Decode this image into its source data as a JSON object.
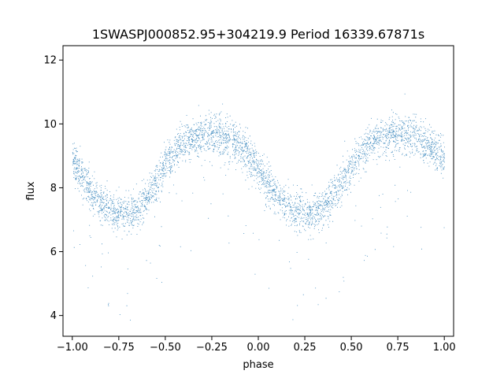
{
  "chart_data": {
    "type": "scatter",
    "title": "1SWASPJ000852.95+304219.9 Period 16339.67871s",
    "xlabel": "phase",
    "ylabel": "flux",
    "xlim": [
      -1.05,
      1.05
    ],
    "ylim": [
      3.35,
      12.45
    ],
    "x_ticks": [
      -1.0,
      -0.75,
      -0.5,
      -0.25,
      0.0,
      0.25,
      0.5,
      0.75,
      1.0
    ],
    "x_tick_labels": [
      "−1.00",
      "−0.75",
      "−0.50",
      "−0.25",
      "0.00",
      "0.25",
      "0.50",
      "0.75",
      "1.00"
    ],
    "y_ticks": [
      4,
      6,
      8,
      10,
      12
    ],
    "y_tick_labels": [
      "4",
      "6",
      "8",
      "10",
      "12"
    ],
    "grid": false,
    "point_color": "#1f77b4",
    "series": [
      {
        "x": [
          -1.0,
          -0.95,
          -0.9,
          -0.85,
          -0.8,
          -0.75,
          -0.7,
          -0.65,
          -0.6,
          -0.55,
          -0.5,
          -0.45,
          -0.4,
          -0.35,
          -0.3,
          -0.25,
          -0.2,
          -0.15,
          -0.1,
          -0.05,
          0.0,
          0.05,
          0.1,
          0.15,
          0.2,
          0.25,
          0.3,
          0.35,
          0.4,
          0.45,
          0.5,
          0.55,
          0.6,
          0.65,
          0.7,
          0.75,
          0.8,
          0.85,
          0.9,
          0.95,
          1.0
        ],
        "y": [
          8.9,
          8.4,
          7.9,
          7.5,
          7.3,
          7.2,
          7.2,
          7.35,
          7.7,
          8.2,
          8.7,
          9.1,
          9.4,
          9.55,
          9.65,
          9.7,
          9.65,
          9.5,
          9.3,
          9.0,
          8.6,
          8.1,
          7.7,
          7.4,
          7.25,
          7.2,
          7.25,
          7.4,
          7.75,
          8.2,
          8.7,
          9.1,
          9.4,
          9.55,
          9.65,
          9.7,
          9.65,
          9.55,
          9.35,
          9.15,
          8.9
        ]
      }
    ],
    "scatter_spread": 0.3,
    "outlier_fraction": 0.04,
    "points_per_phase": 7000
  }
}
